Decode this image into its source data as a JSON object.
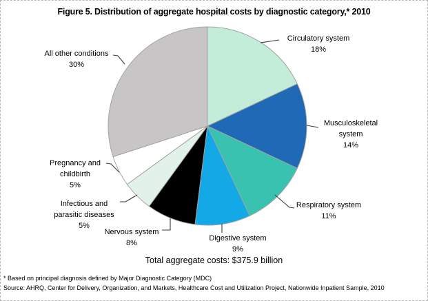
{
  "title": "Figure 5. Distribution of aggregate hospital costs by diagnostic category,* 2010",
  "total_costs_label": "Total aggregate costs:  $375.9 billion",
  "footnotes": {
    "asterisk": "* Based on principal diagnosis defined by Major Diagnostic Category (MDC)",
    "source": "Source: AHRQ, Center for Delivery, Organization, and Markets, Healthcare Cost and Utilization Project, Nationwide Inpatient Sample, 2010"
  },
  "chart_data": {
    "type": "pie",
    "title": "Figure 5. Distribution of aggregate hospital costs by diagnostic category,* 2010",
    "total_label": "Total aggregate costs: $375.9 billion",
    "unit": "percent of aggregate hospital costs",
    "start_angle_deg": 0,
    "direction": "clockwise",
    "legend_position": "labels-with-leader-lines",
    "categories": [
      "Circulatory system",
      "Musculoskeletal system",
      "Respiratory system",
      "Digestive system",
      "Nervous system",
      "Infectious and parasitic diseases",
      "Pregnancy and childbirth",
      "All other conditions"
    ],
    "values": [
      18,
      14,
      11,
      9,
      8,
      5,
      5,
      30
    ],
    "slices": [
      {
        "id": "circulatory",
        "category": "Circulatory system",
        "value": 18,
        "color": "#C4EDD9",
        "display": "Circulatory system\n18%"
      },
      {
        "id": "musculoskeletal",
        "category": "Musculoskeletal system",
        "value": 14,
        "color": "#2069B6",
        "display": "Musculoskeletal\nsystem\n14%"
      },
      {
        "id": "respiratory",
        "category": "Respiratory system",
        "value": 11,
        "color": "#3AC2B0",
        "display": "Respiratory system\n11%"
      },
      {
        "id": "digestive",
        "category": "Digestive system",
        "value": 9,
        "color": "#12A9E6",
        "display": "Digestive system\n9%"
      },
      {
        "id": "nervous",
        "category": "Nervous system",
        "value": 8,
        "color": "#000000",
        "display": "Nervous system\n8%"
      },
      {
        "id": "infectious",
        "category": "Infectious and parasitic diseases",
        "value": 5,
        "color": "#E3F2E8",
        "display": "Infectious and\nparasitic diseases\n5%"
      },
      {
        "id": "pregnancy",
        "category": "Pregnancy and childbirth",
        "value": 5,
        "color": "#FFFFFF",
        "display": "Pregnancy and\nchildbirth\n5%"
      },
      {
        "id": "all_other",
        "category": "All other conditions",
        "value": 30,
        "color": "#C8C5C6",
        "display": "All other conditions\n30%"
      }
    ],
    "slice_border_color": "#A3A3A3",
    "leader_line_color": "#3A3A3A"
  }
}
